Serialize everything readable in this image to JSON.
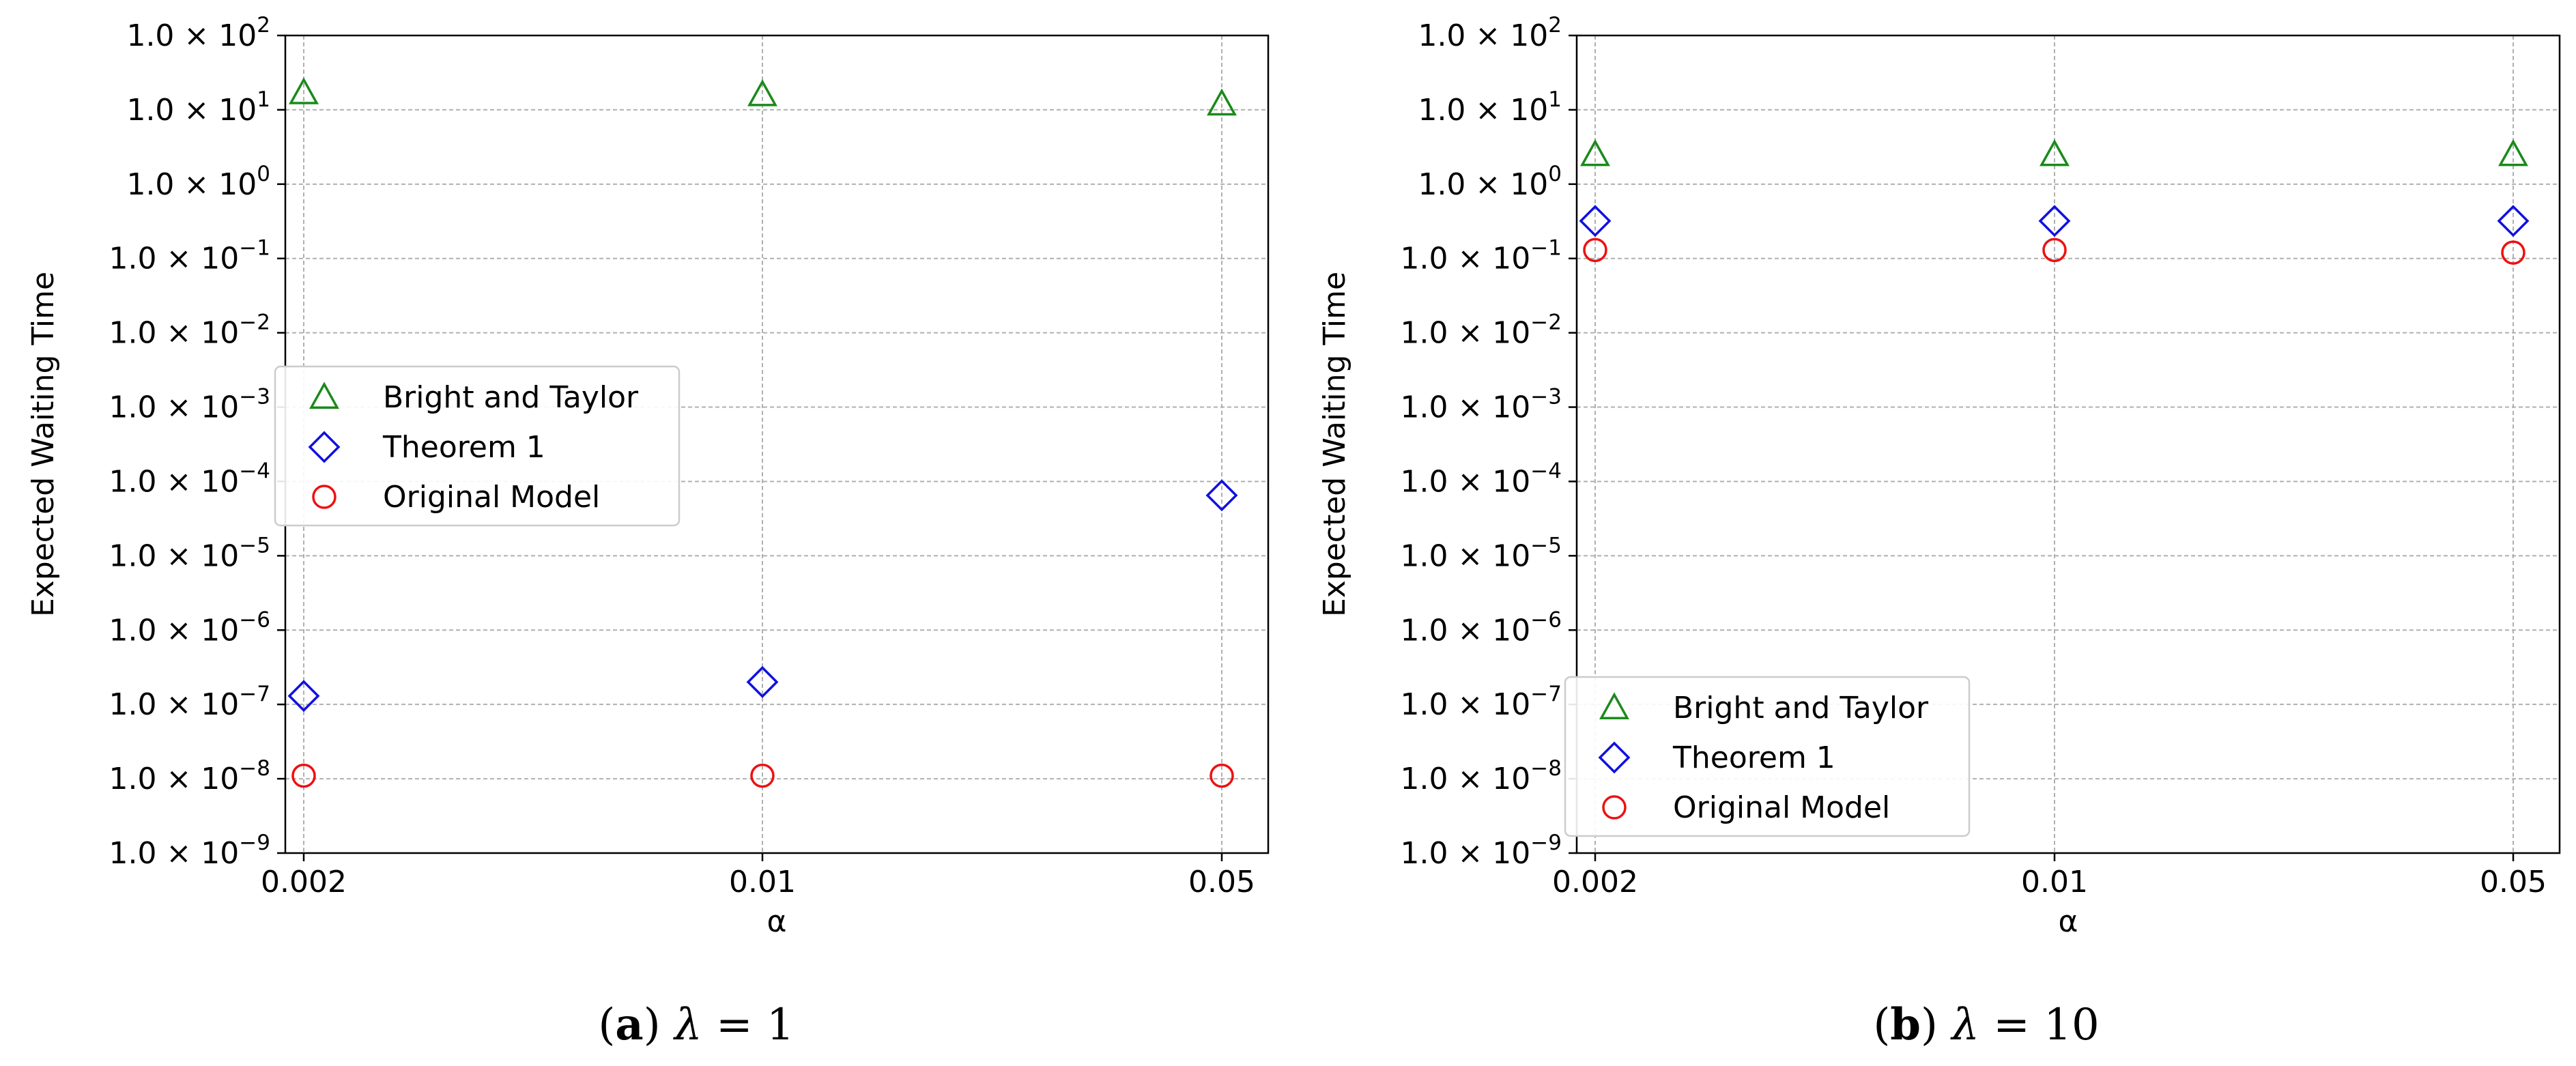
{
  "colors": {
    "bright_and_taylor": "#1a8a1a",
    "theorem_1": "#1010e0",
    "original_model": "#ee1010",
    "grid": "#b0b0b0"
  },
  "chart_data": [
    {
      "type": "scatter",
      "panel_tag": "a",
      "caption_param": "λ",
      "caption_eq": "= 1",
      "xlabel": "α",
      "ylabel": "Expected Waiting Time",
      "yscale": "log",
      "ylim": [
        1e-09,
        100
      ],
      "categories": [
        "0.002",
        "0.01",
        "0.05"
      ],
      "grid": true,
      "legend_position": "center-left",
      "series": [
        {
          "name": "Bright and Taylor",
          "marker": "triangle",
          "values": [
            17,
            16,
            12
          ]
        },
        {
          "name": "Theorem 1",
          "marker": "diamond",
          "values": [
            1.3e-07,
            2e-07,
            6.5e-05
          ]
        },
        {
          "name": "Original Model",
          "marker": "circle",
          "values": [
            1.1e-08,
            1.1e-08,
            1.1e-08
          ]
        }
      ]
    },
    {
      "type": "scatter",
      "panel_tag": "b",
      "caption_param": "λ",
      "caption_eq": "= 10",
      "xlabel": "α",
      "ylabel": "Expected Waiting Time",
      "yscale": "log",
      "ylim": [
        1e-09,
        100
      ],
      "categories": [
        "0.002",
        "0.01",
        "0.05"
      ],
      "grid": true,
      "legend_position": "lower-left",
      "series": [
        {
          "name": "Bright and Taylor",
          "marker": "triangle",
          "values": [
            2.5,
            2.5,
            2.5
          ]
        },
        {
          "name": "Theorem 1",
          "marker": "diamond",
          "values": [
            0.32,
            0.32,
            0.32
          ]
        },
        {
          "name": "Original Model",
          "marker": "circle",
          "values": [
            0.13,
            0.13,
            0.12
          ]
        }
      ]
    }
  ],
  "y_tick_labels": [
    {
      "mant": "1.0",
      "exp": "2"
    },
    {
      "mant": "1.0",
      "exp": "1"
    },
    {
      "mant": "1.0",
      "exp": "0"
    },
    {
      "mant": "1.0",
      "exp": "−1"
    },
    {
      "mant": "1.0",
      "exp": "−2"
    },
    {
      "mant": "1.0",
      "exp": "−3"
    },
    {
      "mant": "1.0",
      "exp": "−4"
    },
    {
      "mant": "1.0",
      "exp": "−5"
    },
    {
      "mant": "1.0",
      "exp": "−6"
    },
    {
      "mant": "1.0",
      "exp": "−7"
    },
    {
      "mant": "1.0",
      "exp": "−8"
    },
    {
      "mant": "1.0",
      "exp": "−9"
    }
  ]
}
